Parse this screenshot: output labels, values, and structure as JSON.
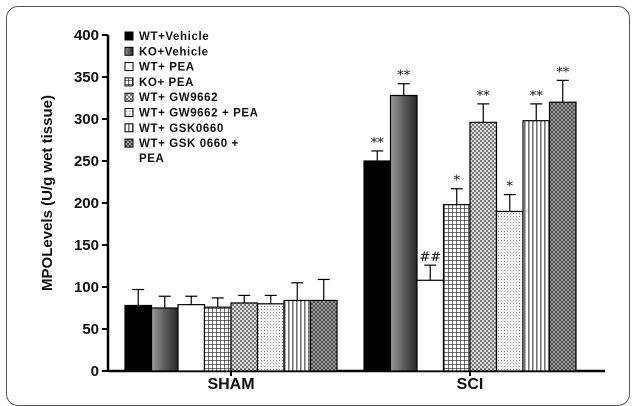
{
  "chart_data": {
    "type": "bar",
    "ylabel": "MPOLevels (U/g wet tissue)",
    "ylim": [
      0,
      400
    ],
    "yticks": [
      0,
      50,
      100,
      150,
      200,
      250,
      300,
      350,
      400
    ],
    "categories": [
      "SHAM",
      "SCI"
    ],
    "series": [
      {
        "name": "WT+Vehicle",
        "pattern": "solid-black",
        "values": [
          78,
          250
        ],
        "errors": [
          19,
          12
        ],
        "annotations": [
          "",
          "**"
        ]
      },
      {
        "name": "KO+Vehicle",
        "pattern": "gradient-gray",
        "values": [
          75,
          328
        ],
        "errors": [
          14,
          14
        ],
        "annotations": [
          "",
          "**"
        ]
      },
      {
        "name": "WT+ PEA",
        "pattern": "white",
        "values": [
          79,
          108
        ],
        "errors": [
          10,
          18
        ],
        "annotations": [
          "",
          "##"
        ]
      },
      {
        "name": "KO+ PEA",
        "pattern": "grid",
        "values": [
          76,
          198
        ],
        "errors": [
          11,
          19
        ],
        "annotations": [
          "",
          "*"
        ]
      },
      {
        "name": "WT+ GW9662",
        "pattern": "dots",
        "values": [
          81,
          296
        ],
        "errors": [
          9,
          22
        ],
        "annotations": [
          "",
          "**"
        ]
      },
      {
        "name": "WT+ GW9662 + PEA",
        "pattern": "fine-dots",
        "values": [
          80,
          190
        ],
        "errors": [
          10,
          20
        ],
        "annotations": [
          "",
          "*"
        ]
      },
      {
        "name": "WT+ GSK0660",
        "pattern": "vertical-lines",
        "values": [
          84,
          298
        ],
        "errors": [
          21,
          20
        ],
        "annotations": [
          "",
          "**"
        ]
      },
      {
        "name": "WT+ GSK 0660 +\nPEA",
        "pattern": "crosshatch",
        "values": [
          84,
          320
        ],
        "errors": [
          25,
          26
        ],
        "annotations": [
          "",
          "**"
        ]
      }
    ],
    "legend_position": "top-left",
    "grid": false
  }
}
